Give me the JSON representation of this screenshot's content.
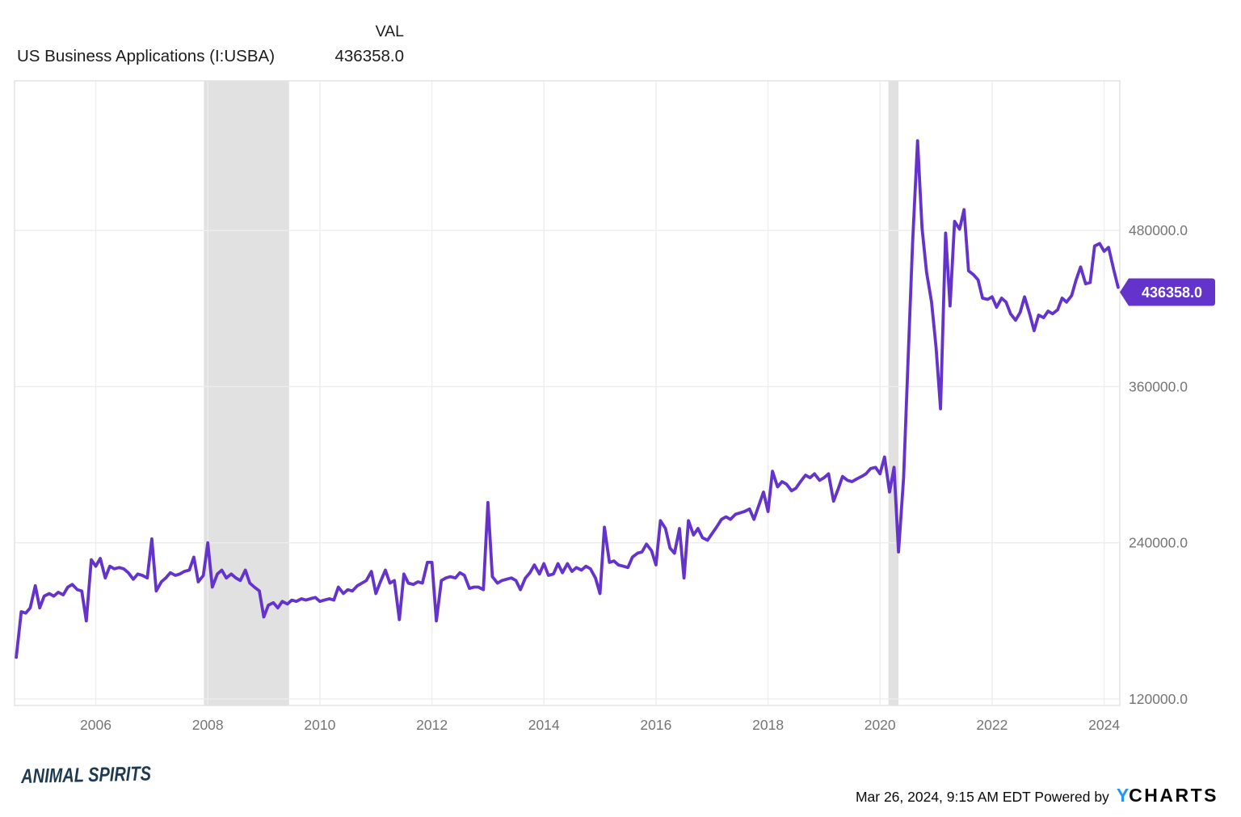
{
  "header": {
    "column_label": "VAL",
    "series_title": "US Business Applications (I:USBA)",
    "series_value": "436358.0"
  },
  "chart_data": {
    "type": "line",
    "title": "US Business Applications (I:USBA)",
    "series_name": "VAL",
    "latest_value": 436358.0,
    "latest_value_text": "436358.0",
    "xlabel": "",
    "ylabel": "",
    "grid": true,
    "xlim": [
      2004.55,
      2024.28
    ],
    "ylim": [
      115000,
      595000
    ],
    "x_ticks": [
      {
        "value": 2006,
        "label": "2006"
      },
      {
        "value": 2008,
        "label": "2008"
      },
      {
        "value": 2010,
        "label": "2010"
      },
      {
        "value": 2012,
        "label": "2012"
      },
      {
        "value": 2014,
        "label": "2014"
      },
      {
        "value": 2016,
        "label": "2016"
      },
      {
        "value": 2018,
        "label": "2018"
      },
      {
        "value": 2020,
        "label": "2020"
      },
      {
        "value": 2022,
        "label": "2022"
      },
      {
        "value": 2024,
        "label": "2024"
      }
    ],
    "y_ticks": [
      {
        "value": 480000,
        "label": "480000.0"
      },
      {
        "value": 360000,
        "label": "360000.0"
      },
      {
        "value": 240000,
        "label": "240000.0"
      },
      {
        "value": 120000,
        "label": "120000.0"
      }
    ],
    "recession_bands": [
      {
        "start": 2007.93,
        "end": 2009.45
      },
      {
        "start": 2020.15,
        "end": 2020.33
      }
    ],
    "points": [
      [
        2004.58,
        152000
      ],
      [
        2004.67,
        187000
      ],
      [
        2004.75,
        186000
      ],
      [
        2004.83,
        190000
      ],
      [
        2004.92,
        207000
      ],
      [
        2005.0,
        190000
      ],
      [
        2005.08,
        199000
      ],
      [
        2005.17,
        201000
      ],
      [
        2005.25,
        199000
      ],
      [
        2005.33,
        202000
      ],
      [
        2005.42,
        200000
      ],
      [
        2005.5,
        206000
      ],
      [
        2005.58,
        208000
      ],
      [
        2005.67,
        204000
      ],
      [
        2005.75,
        203000
      ],
      [
        2005.83,
        180000
      ],
      [
        2005.92,
        227000
      ],
      [
        2006.0,
        222000
      ],
      [
        2006.08,
        228000
      ],
      [
        2006.17,
        213000
      ],
      [
        2006.25,
        222000
      ],
      [
        2006.33,
        220000
      ],
      [
        2006.42,
        221000
      ],
      [
        2006.5,
        220000
      ],
      [
        2006.58,
        217000
      ],
      [
        2006.67,
        212000
      ],
      [
        2006.75,
        216000
      ],
      [
        2006.83,
        215000
      ],
      [
        2006.92,
        213000
      ],
      [
        2007.0,
        243000
      ],
      [
        2007.08,
        203000
      ],
      [
        2007.17,
        210000
      ],
      [
        2007.25,
        213000
      ],
      [
        2007.33,
        217000
      ],
      [
        2007.42,
        215000
      ],
      [
        2007.5,
        216000
      ],
      [
        2007.58,
        218000
      ],
      [
        2007.67,
        219000
      ],
      [
        2007.75,
        229000
      ],
      [
        2007.83,
        210000
      ],
      [
        2007.92,
        215000
      ],
      [
        2008.0,
        240000
      ],
      [
        2008.08,
        206000
      ],
      [
        2008.17,
        216000
      ],
      [
        2008.25,
        219000
      ],
      [
        2008.33,
        213000
      ],
      [
        2008.42,
        216000
      ],
      [
        2008.5,
        213000
      ],
      [
        2008.58,
        211000
      ],
      [
        2008.67,
        219000
      ],
      [
        2008.75,
        209000
      ],
      [
        2008.83,
        206000
      ],
      [
        2008.92,
        203000
      ],
      [
        2009.0,
        183000
      ],
      [
        2009.08,
        192000
      ],
      [
        2009.17,
        194000
      ],
      [
        2009.25,
        190000
      ],
      [
        2009.33,
        195000
      ],
      [
        2009.42,
        193000
      ],
      [
        2009.5,
        196000
      ],
      [
        2009.58,
        195000
      ],
      [
        2009.67,
        197000
      ],
      [
        2009.75,
        196000
      ],
      [
        2009.83,
        197000
      ],
      [
        2009.92,
        198000
      ],
      [
        2010.0,
        195000
      ],
      [
        2010.08,
        196000
      ],
      [
        2010.17,
        197000
      ],
      [
        2010.25,
        196000
      ],
      [
        2010.33,
        206000
      ],
      [
        2010.42,
        201000
      ],
      [
        2010.5,
        204000
      ],
      [
        2010.58,
        203000
      ],
      [
        2010.67,
        207000
      ],
      [
        2010.75,
        209000
      ],
      [
        2010.83,
        211000
      ],
      [
        2010.92,
        218000
      ],
      [
        2011.0,
        201000
      ],
      [
        2011.08,
        210000
      ],
      [
        2011.17,
        219000
      ],
      [
        2011.25,
        209000
      ],
      [
        2011.33,
        211000
      ],
      [
        2011.42,
        181000
      ],
      [
        2011.5,
        216000
      ],
      [
        2011.58,
        209000
      ],
      [
        2011.67,
        208000
      ],
      [
        2011.75,
        210000
      ],
      [
        2011.83,
        209000
      ],
      [
        2011.92,
        225000
      ],
      [
        2012.0,
        225000
      ],
      [
        2012.08,
        180000
      ],
      [
        2012.17,
        211000
      ],
      [
        2012.25,
        213000
      ],
      [
        2012.33,
        214000
      ],
      [
        2012.42,
        213000
      ],
      [
        2012.5,
        217000
      ],
      [
        2012.58,
        215000
      ],
      [
        2012.67,
        205000
      ],
      [
        2012.75,
        206000
      ],
      [
        2012.83,
        206000
      ],
      [
        2012.92,
        204000
      ],
      [
        2013.0,
        271000
      ],
      [
        2013.08,
        214000
      ],
      [
        2013.17,
        209000
      ],
      [
        2013.25,
        211000
      ],
      [
        2013.33,
        212000
      ],
      [
        2013.42,
        213000
      ],
      [
        2013.5,
        211000
      ],
      [
        2013.58,
        204000
      ],
      [
        2013.67,
        213000
      ],
      [
        2013.75,
        217000
      ],
      [
        2013.83,
        223000
      ],
      [
        2013.92,
        216000
      ],
      [
        2014.0,
        224000
      ],
      [
        2014.08,
        215000
      ],
      [
        2014.17,
        216000
      ],
      [
        2014.25,
        224000
      ],
      [
        2014.33,
        217000
      ],
      [
        2014.42,
        224000
      ],
      [
        2014.5,
        218000
      ],
      [
        2014.58,
        221000
      ],
      [
        2014.67,
        219000
      ],
      [
        2014.75,
        222000
      ],
      [
        2014.83,
        220000
      ],
      [
        2014.92,
        213000
      ],
      [
        2015.0,
        201000
      ],
      [
        2015.08,
        252000
      ],
      [
        2015.17,
        225000
      ],
      [
        2015.25,
        226000
      ],
      [
        2015.33,
        223000
      ],
      [
        2015.42,
        222000
      ],
      [
        2015.5,
        221000
      ],
      [
        2015.58,
        229000
      ],
      [
        2015.67,
        232000
      ],
      [
        2015.75,
        233000
      ],
      [
        2015.83,
        239000
      ],
      [
        2015.92,
        234000
      ],
      [
        2016.0,
        223000
      ],
      [
        2016.08,
        257000
      ],
      [
        2016.17,
        251000
      ],
      [
        2016.25,
        236000
      ],
      [
        2016.33,
        232000
      ],
      [
        2016.42,
        251000
      ],
      [
        2016.5,
        213000
      ],
      [
        2016.58,
        257000
      ],
      [
        2016.67,
        246000
      ],
      [
        2016.75,
        251000
      ],
      [
        2016.83,
        244000
      ],
      [
        2016.92,
        242000
      ],
      [
        2017.0,
        247000
      ],
      [
        2017.08,
        252000
      ],
      [
        2017.17,
        258000
      ],
      [
        2017.25,
        260000
      ],
      [
        2017.33,
        258000
      ],
      [
        2017.42,
        262000
      ],
      [
        2017.5,
        263000
      ],
      [
        2017.58,
        264000
      ],
      [
        2017.67,
        266000
      ],
      [
        2017.75,
        258000
      ],
      [
        2017.83,
        268000
      ],
      [
        2017.92,
        279000
      ],
      [
        2018.0,
        264000
      ],
      [
        2018.08,
        295000
      ],
      [
        2018.17,
        283000
      ],
      [
        2018.25,
        287000
      ],
      [
        2018.33,
        285000
      ],
      [
        2018.42,
        280000
      ],
      [
        2018.5,
        282000
      ],
      [
        2018.58,
        287000
      ],
      [
        2018.67,
        292000
      ],
      [
        2018.75,
        290000
      ],
      [
        2018.83,
        293000
      ],
      [
        2018.92,
        288000
      ],
      [
        2019.0,
        290000
      ],
      [
        2019.08,
        293000
      ],
      [
        2019.17,
        272000
      ],
      [
        2019.25,
        281000
      ],
      [
        2019.33,
        291000
      ],
      [
        2019.42,
        288000
      ],
      [
        2019.5,
        287000
      ],
      [
        2019.58,
        289000
      ],
      [
        2019.67,
        291000
      ],
      [
        2019.75,
        293000
      ],
      [
        2019.83,
        297000
      ],
      [
        2019.92,
        298000
      ],
      [
        2020.0,
        293000
      ],
      [
        2020.08,
        306000
      ],
      [
        2020.17,
        279000
      ],
      [
        2020.25,
        298000
      ],
      [
        2020.33,
        233000
      ],
      [
        2020.42,
        290000
      ],
      [
        2020.5,
        380000
      ],
      [
        2020.58,
        470000
      ],
      [
        2020.67,
        549000
      ],
      [
        2020.75,
        482000
      ],
      [
        2020.83,
        448000
      ],
      [
        2020.92,
        425000
      ],
      [
        2021.0,
        390000
      ],
      [
        2021.08,
        343000
      ],
      [
        2021.17,
        478000
      ],
      [
        2021.25,
        422000
      ],
      [
        2021.33,
        487000
      ],
      [
        2021.42,
        481000
      ],
      [
        2021.5,
        496000
      ],
      [
        2021.58,
        449000
      ],
      [
        2021.67,
        446000
      ],
      [
        2021.75,
        442000
      ],
      [
        2021.83,
        428000
      ],
      [
        2021.92,
        427000
      ],
      [
        2022.0,
        429000
      ],
      [
        2022.08,
        421000
      ],
      [
        2022.17,
        428000
      ],
      [
        2022.25,
        425000
      ],
      [
        2022.33,
        416000
      ],
      [
        2022.42,
        411000
      ],
      [
        2022.5,
        417000
      ],
      [
        2022.58,
        429000
      ],
      [
        2022.67,
        416000
      ],
      [
        2022.75,
        403000
      ],
      [
        2022.83,
        415000
      ],
      [
        2022.92,
        413000
      ],
      [
        2023.0,
        418000
      ],
      [
        2023.08,
        416000
      ],
      [
        2023.17,
        419000
      ],
      [
        2023.25,
        428000
      ],
      [
        2023.33,
        425000
      ],
      [
        2023.42,
        430000
      ],
      [
        2023.5,
        442000
      ],
      [
        2023.58,
        452000
      ],
      [
        2023.67,
        439000
      ],
      [
        2023.75,
        440000
      ],
      [
        2023.83,
        468000
      ],
      [
        2023.92,
        470000
      ],
      [
        2024.0,
        464000
      ],
      [
        2024.08,
        467000
      ],
      [
        2024.17,
        450000
      ],
      [
        2024.25,
        436358
      ]
    ]
  },
  "colors": {
    "line": "#6333CB",
    "flag_bg": "#6333CB",
    "flag_text": "#ffffff",
    "grid": "#ededed",
    "border": "#e3e3e3",
    "recession_band": "#e1e1e1",
    "tick_text": "#757575",
    "title_text": "#1c1c1c",
    "brand_text": "#1d3a52",
    "ycharts_blue": "#2196F3"
  },
  "footer": {
    "brand": "ANIMAL SPIRITS",
    "timestamp_powered": "Mar 26, 2024, 9:15 AM EDT Powered by",
    "logo_y": "Y",
    "logo_charts": "CHARTS"
  }
}
